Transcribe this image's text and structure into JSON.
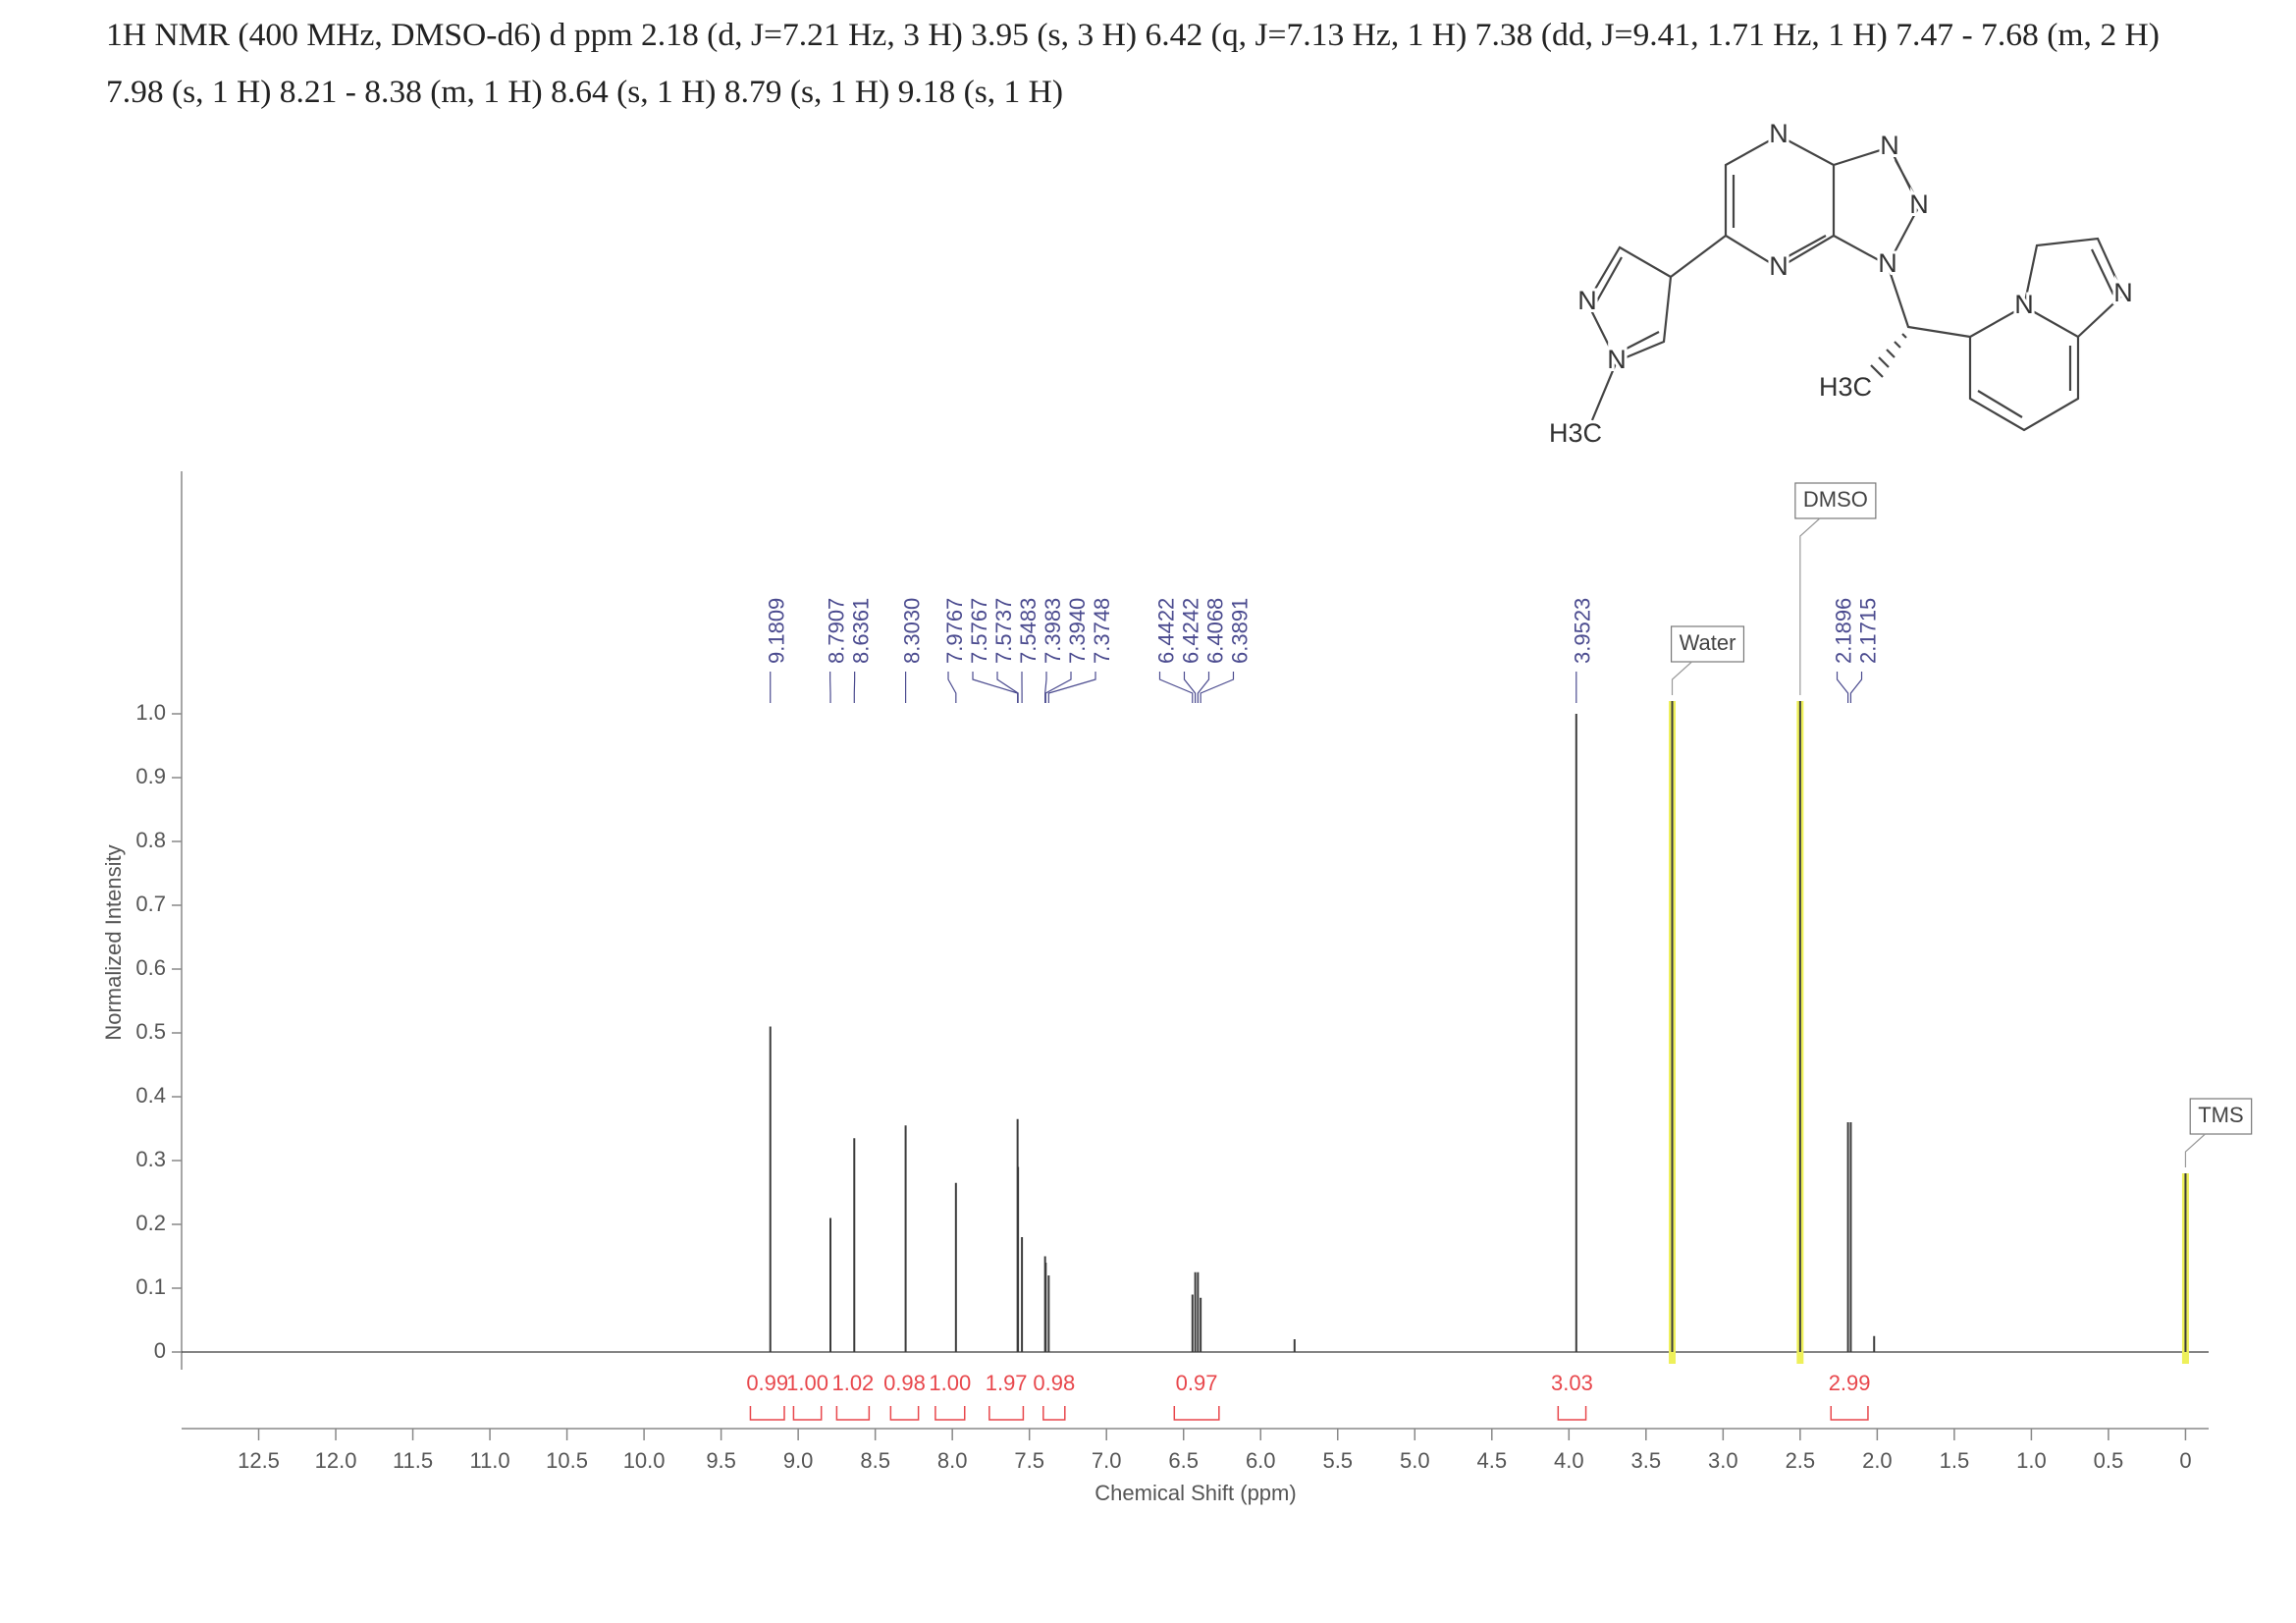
{
  "header": {
    "lines": [
      "1H NMR (400 MHz, DMSO-d6) d ppm 2.18 (d, J=7.21 Hz, 3 H) 3.95 (s, 3 H) 6.42 (q, J=7.13 Hz, 1 H) 7.38 (dd, J=9.41, 1.71 Hz, 1 H) 7.47 - 7.68 (m, 2 H)",
      "7.98 (s, 1 H) 8.21 - 8.38 (m, 1 H) 8.64 (s, 1 H) 8.79 (s, 1 H) 9.18 (s, 1 H)"
    ]
  },
  "structure": {
    "atoms": [
      "N",
      "N",
      "N",
      "N",
      "N",
      "N",
      "N",
      "N",
      "N",
      "H3C",
      "H3C"
    ]
  },
  "chart_data": {
    "type": "nmr",
    "xlabel": "Chemical Shift (ppm)",
    "ylabel": "Normalized Intensity",
    "xlim": [
      13.0,
      -0.15
    ],
    "ylim": [
      -0.12,
      1.38
    ],
    "xticks": [
      12.5,
      {
        "value": 12,
        "label": "12.0"
      },
      11.5,
      {
        "value": 11,
        "label": "11.0"
      },
      10.5,
      {
        "value": 10,
        "label": "10.0"
      },
      9.5,
      {
        "value": 9,
        "label": "9.0"
      },
      8.5,
      {
        "value": 8,
        "label": "8.0"
      },
      7.5,
      {
        "value": 7,
        "label": "7.0"
      },
      6.5,
      {
        "value": 6,
        "label": "6.0"
      },
      5.5,
      {
        "value": 5,
        "label": "5.0"
      },
      4.5,
      {
        "value": 4,
        "label": "4.0"
      },
      3.5,
      {
        "value": 3,
        "label": "3.0"
      },
      2.5,
      {
        "value": 2,
        "label": "2.0"
      },
      1.5,
      {
        "value": 1,
        "label": "1.0"
      },
      0.5,
      0
    ],
    "yticks": [
      0,
      0.1,
      0.2,
      0.3,
      0.4,
      0.5,
      0.6,
      0.7,
      0.8,
      0.9,
      {
        "value": 1,
        "label": "1.0"
      }
    ],
    "peaks": [
      {
        "shift": 9.1809,
        "label": "9.1809",
        "height": 0.51
      },
      {
        "shift": 8.7907,
        "label": "8.7907",
        "height": 0.21
      },
      {
        "shift": 8.6361,
        "label": "8.6361",
        "height": 0.335
      },
      {
        "shift": 8.303,
        "label": "8.3030",
        "height": 0.355
      },
      {
        "shift": 7.9767,
        "label": "7.9767",
        "height": 0.265
      },
      {
        "shift": 7.5767,
        "label": "7.5767",
        "height": 0.365
      },
      {
        "shift": 7.5737,
        "label": "7.5737",
        "height": 0.29
      },
      {
        "shift": 7.5483,
        "label": "7.5483",
        "height": 0.18
      },
      {
        "shift": 7.3983,
        "label": "7.3983",
        "height": 0.15
      },
      {
        "shift": 7.394,
        "label": "7.3940",
        "height": 0.14
      },
      {
        "shift": 7.3748,
        "label": "7.3748",
        "height": 0.12
      },
      {
        "shift": 6.4422,
        "label": "6.4422",
        "height": 0.09
      },
      {
        "shift": 6.4242,
        "label": "6.4242",
        "height": 0.125
      },
      {
        "shift": 6.4068,
        "label": "6.4068",
        "height": 0.125
      },
      {
        "shift": 6.3891,
        "label": "6.3891",
        "height": 0.085
      },
      {
        "shift": 3.9523,
        "label": "3.9523",
        "height": 1.0
      },
      {
        "shift": 2.1896,
        "label": "2.1896",
        "height": 0.36
      },
      {
        "shift": 2.1715,
        "label": "2.1715",
        "height": 0.36
      },
      {
        "shift": 3.33,
        "annotation": "Water",
        "height": 1.02
      },
      {
        "shift": 2.5,
        "annotation": "DMSO",
        "height": 1.02
      },
      {
        "shift": 0.0,
        "annotation": "TMS",
        "height": 0.28
      },
      {
        "shift": 5.78,
        "height": 0.02
      },
      {
        "shift": 2.02,
        "height": 0.025
      }
    ],
    "integrals": {
      "values": [
        0.99,
        1,
        1.02,
        0.98,
        1,
        1.97,
        0.98,
        0.97,
        3.03,
        2.99
      ],
      "value_labels": [
        "0.99",
        "1.00",
        "1.02",
        "0.98",
        "1.00",
        "1.97",
        "0.98",
        "0.97",
        "3.03",
        "2.99"
      ],
      "ranges": [
        [
          9.31,
          9.09
        ],
        [
          9.03,
          8.85
        ],
        [
          8.75,
          8.54
        ],
        [
          8.4,
          8.22
        ],
        [
          8.11,
          7.92
        ],
        [
          7.76,
          7.54
        ],
        [
          7.41,
          7.27
        ],
        [
          6.56,
          6.27
        ],
        [
          4.07,
          3.89
        ],
        [
          2.3,
          2.06
        ]
      ]
    },
    "peak_color": "#3c3c3c",
    "label_color": "#4b4b8f",
    "integral_color": "#e8474c",
    "highlight_color": "#eef05a",
    "axis_color": "#888888"
  }
}
